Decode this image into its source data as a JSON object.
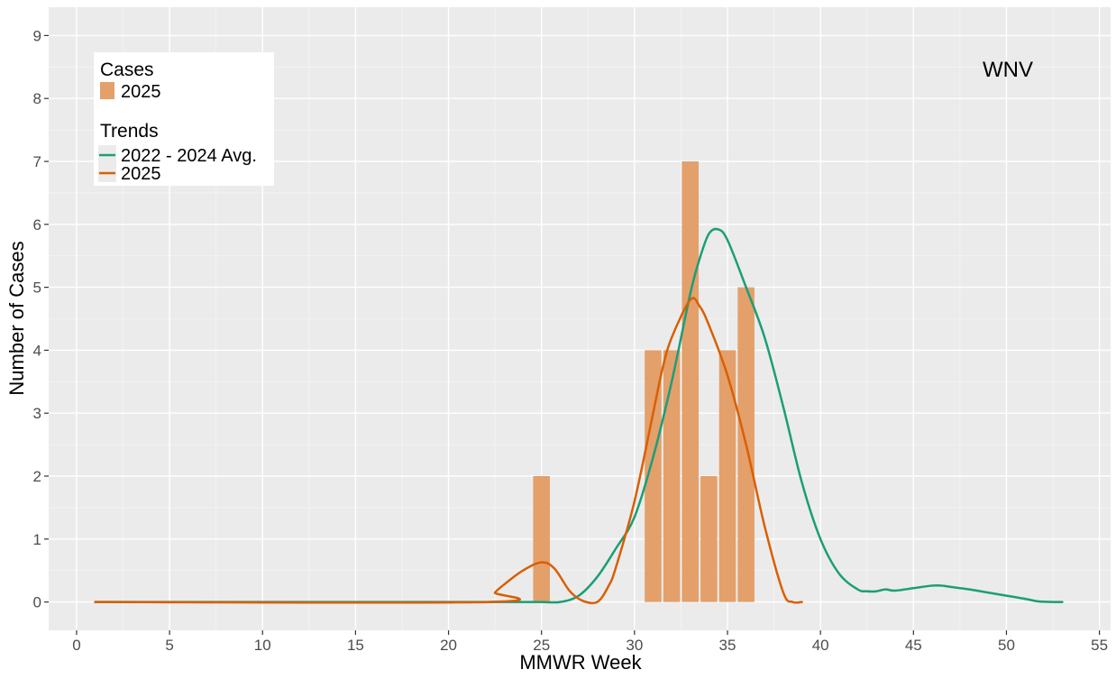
{
  "chart_data": {
    "type": "bar",
    "annotation": "WNV",
    "xlabel": "MMWR Week",
    "ylabel": "Number of Cases",
    "xlim": [
      -1.5,
      55.6
    ],
    "ylim": [
      -0.45,
      9.45
    ],
    "x_ticks": [
      0,
      5,
      10,
      15,
      20,
      25,
      30,
      35,
      40,
      45,
      50,
      55
    ],
    "y_ticks": [
      0,
      1,
      2,
      3,
      4,
      5,
      6,
      7,
      8,
      9
    ],
    "grid": true,
    "legend_position": "top-left",
    "legend": {
      "cases_title": "Cases",
      "cases_label": "2025",
      "trends_title": "Trends",
      "trend1_label": "2022 - 2024 Avg.",
      "trend2_label": "2025"
    },
    "bars": {
      "name": "2025",
      "color": "#E3A06B",
      "weeks": [
        25,
        31,
        32,
        33,
        34,
        35,
        36
      ],
      "values": [
        2,
        4,
        4,
        7,
        2,
        4,
        5
      ]
    },
    "series": [
      {
        "name": "2022 - 2024 Avg.",
        "color": "#1B9E77",
        "x": [
          1,
          22,
          23,
          24,
          25,
          26,
          27,
          28,
          29,
          30,
          31,
          32,
          33,
          33.5,
          34,
          34.5,
          35,
          36,
          37,
          38,
          39,
          40,
          41,
          42,
          42.5,
          43,
          43.5,
          44,
          45,
          46,
          46.5,
          47,
          48,
          49,
          50,
          51,
          51.7,
          52.5,
          53
        ],
        "y": [
          0,
          0,
          0,
          0,
          0,
          0,
          0.1,
          0.4,
          0.85,
          1.35,
          2.3,
          3.5,
          4.9,
          5.45,
          5.85,
          5.92,
          5.75,
          5.0,
          4.2,
          3.1,
          1.9,
          1.0,
          0.45,
          0.2,
          0.17,
          0.17,
          0.2,
          0.18,
          0.22,
          0.26,
          0.26,
          0.24,
          0.2,
          0.15,
          0.1,
          0.05,
          0.01,
          0,
          0
        ]
      },
      {
        "name": "2025",
        "color": "#D95F02",
        "x": [
          1,
          22.2,
          22.5,
          23,
          24,
          25,
          25.7,
          26.5,
          27.2,
          28,
          28.6,
          29,
          30,
          31,
          31.5,
          32,
          33,
          33.5,
          34,
          35,
          36,
          37,
          38,
          38.5,
          39
        ],
        "y": [
          0,
          0,
          0.15,
          0.28,
          0.5,
          0.63,
          0.53,
          0.18,
          0.02,
          0,
          0.25,
          0.55,
          1.6,
          3.0,
          3.7,
          4.2,
          4.8,
          4.7,
          4.4,
          3.6,
          2.5,
          1.2,
          0.15,
          0,
          0
        ]
      }
    ]
  }
}
